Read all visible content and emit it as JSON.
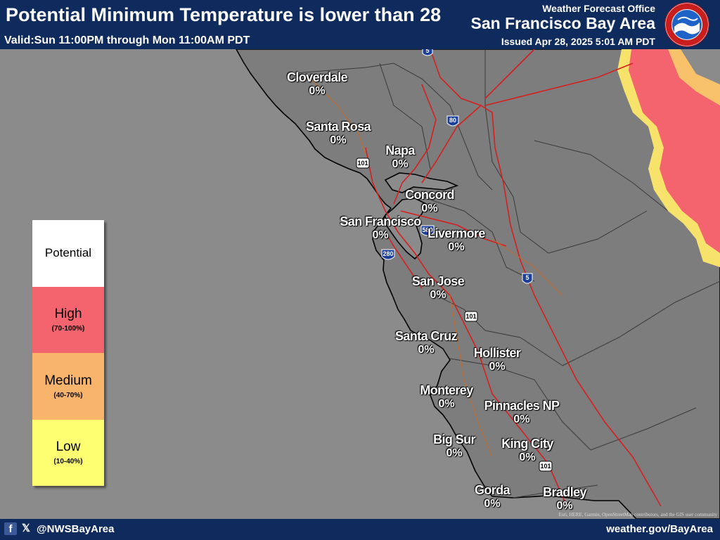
{
  "header": {
    "title": "Potential Minimum Temperature is lower than 28",
    "valid": "Valid:Sun 11:00PM through Mon 11:00AM PDT",
    "office_label": "Weather Forecast Office",
    "office_name": "San Francisco Bay Area",
    "issued": "Issued Apr 28, 2025 5:01 AM PDT",
    "logo_icon": "nws-logo-icon"
  },
  "legend": {
    "title": "Potential",
    "levels": [
      {
        "label": "High",
        "range": "(70-100%)",
        "color": "#f4646e"
      },
      {
        "label": "Medium",
        "range": "(40-70%)",
        "color": "#f8b46b"
      },
      {
        "label": "Low",
        "range": "(10-40%)",
        "color": "#ffff72"
      }
    ]
  },
  "cities": [
    {
      "name": "Cloverdale",
      "value": "0%"
    },
    {
      "name": "Santa Rosa",
      "value": "0%"
    },
    {
      "name": "Napa",
      "value": "0%"
    },
    {
      "name": "Concord",
      "value": "0%"
    },
    {
      "name": "San Francisco",
      "value": "0%"
    },
    {
      "name": "Livermore",
      "value": "0%"
    },
    {
      "name": "San Jose",
      "value": "0%"
    },
    {
      "name": "Santa Cruz",
      "value": "0%"
    },
    {
      "name": "Hollister",
      "value": "0%"
    },
    {
      "name": "Monterey",
      "value": "0%"
    },
    {
      "name": "Pinnacles NP",
      "value": "0%"
    },
    {
      "name": "Big Sur",
      "value": "0%"
    },
    {
      "name": "King City",
      "value": "0%"
    },
    {
      "name": "Gorda",
      "value": "0%"
    },
    {
      "name": "Bradley",
      "value": "0%"
    }
  ],
  "highway_shields": [
    "5",
    "80",
    "101",
    "580",
    "280",
    "5",
    "101",
    "101"
  ],
  "attribution": "Esri, HERE, Garmin, OpenStreetMap contributors, and the GIS user community",
  "footer": {
    "facebook_icon": "facebook-icon",
    "x_icon": "x-icon",
    "handle": "@NWSBayArea",
    "website": "weather.gov/BayArea"
  },
  "colors": {
    "header_bg": "#0f2a5c",
    "ocean": "#8b8b8b",
    "land": "#7d7d7d",
    "roads": "#d42020"
  }
}
